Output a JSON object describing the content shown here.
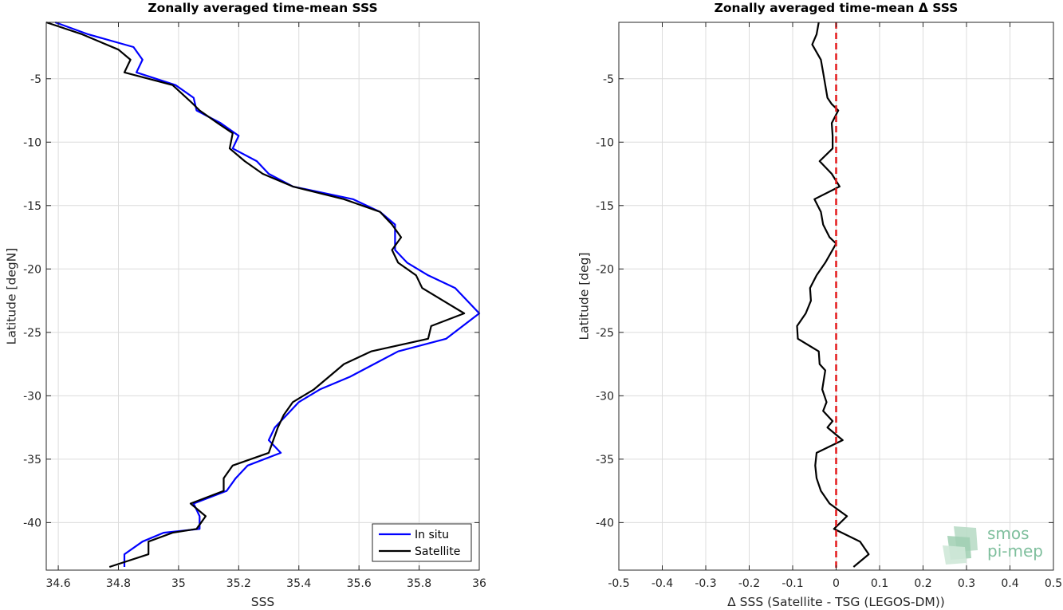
{
  "chart_data": [
    {
      "type": "line",
      "title": "Zonally averaged time-mean SSS",
      "xlabel": "SSS",
      "ylabel": "Latitude [degN]",
      "xlim": [
        34.56,
        36.0
      ],
      "ylim": [
        -43.75,
        -0.55
      ],
      "xticks": [
        34.6,
        34.8,
        35,
        35.2,
        35.4,
        35.6,
        35.8,
        36
      ],
      "xticklabels": [
        "34.6",
        "34.8",
        "35",
        "35.2",
        "35.4",
        "35.6",
        "35.8",
        "36"
      ],
      "yticks": [
        -5,
        -10,
        -15,
        -20,
        -25,
        -30,
        -35,
        -40
      ],
      "yticklabels": [
        "-5",
        "-10",
        "-15",
        "-20",
        "-25",
        "-30",
        "-35",
        "-40"
      ],
      "grid": true,
      "legend_position": "bottom-right",
      "series": [
        {
          "name": "In situ",
          "color": "#0000ff",
          "x": [
            34.59,
            34.7,
            34.85,
            34.88,
            34.86,
            34.99,
            35.05,
            35.06,
            35.14,
            35.2,
            35.18,
            35.26,
            35.3,
            35.38,
            35.58,
            35.67,
            35.72,
            35.72,
            35.72,
            35.76,
            35.83,
            35.92,
            36.0,
            35.89,
            35.73,
            35.65,
            35.57,
            35.47,
            35.4,
            35.36,
            35.32,
            35.3,
            35.34,
            35.23,
            35.19,
            35.16,
            35.05,
            35.07,
            35.07,
            34.95,
            34.88,
            34.82,
            34.82
          ],
          "y": [
            -0.55,
            -1.5,
            -2.5,
            -3.5,
            -4.5,
            -5.5,
            -6.5,
            -7.5,
            -8.5,
            -9.5,
            -10.5,
            -11.5,
            -12.5,
            -13.5,
            -14.5,
            -15.5,
            -16.5,
            -17.5,
            -18.5,
            -19.5,
            -20.5,
            -21.5,
            -23.5,
            -25.5,
            -26.5,
            -27.5,
            -28.5,
            -29.5,
            -30.5,
            -31.5,
            -32.5,
            -33.5,
            -34.5,
            -35.5,
            -36.5,
            -37.5,
            -38.5,
            -39.5,
            -40.5,
            -40.8,
            -41.5,
            -42.5,
            -43.5
          ]
        },
        {
          "name": "Satellite",
          "color": "#000000",
          "x": [
            34.56,
            34.68,
            34.8,
            34.84,
            34.82,
            34.98,
            35.04,
            35.07,
            35.13,
            35.18,
            35.17,
            35.22,
            35.28,
            35.38,
            35.55,
            35.67,
            35.71,
            35.74,
            35.71,
            35.73,
            35.79,
            35.81,
            35.95,
            35.84,
            35.83,
            35.64,
            35.55,
            35.5,
            35.45,
            35.38,
            35.35,
            35.33,
            35.3,
            35.18,
            35.15,
            35.15,
            35.04,
            35.09,
            35.06,
            34.98,
            34.9,
            34.9,
            34.77
          ],
          "y": [
            -0.55,
            -1.5,
            -2.7,
            -3.5,
            -4.5,
            -5.5,
            -6.8,
            -7.5,
            -8.5,
            -9.3,
            -10.5,
            -11.5,
            -12.5,
            -13.5,
            -14.5,
            -15.5,
            -16.5,
            -17.5,
            -18.5,
            -19.5,
            -20.5,
            -21.5,
            -23.5,
            -24.5,
            -25.5,
            -26.5,
            -27.5,
            -28.5,
            -29.5,
            -30.5,
            -31.5,
            -32.5,
            -34.5,
            -35.5,
            -36.5,
            -37.5,
            -38.5,
            -39.5,
            -40.5,
            -40.8,
            -41.5,
            -42.5,
            -43.5
          ]
        }
      ]
    },
    {
      "type": "line",
      "title": "Zonally averaged time-mean Δ SSS",
      "xlabel": "Δ SSS (Satellite - TSG (LEGOS-DM))",
      "ylabel": "Latitude [deg]",
      "xlim": [
        -0.5,
        0.5
      ],
      "ylim": [
        -43.75,
        -0.55
      ],
      "xticks": [
        -0.5,
        -0.4,
        -0.3,
        -0.2,
        -0.1,
        0,
        0.1,
        0.2,
        0.3,
        0.4,
        0.5
      ],
      "xticklabels": [
        "-0.5",
        "-0.4",
        "-0.3",
        "-0.2",
        "-0.1",
        "0",
        "0.1",
        "0.2",
        "0.3",
        "0.4",
        "0.5"
      ],
      "yticks": [
        -5,
        -10,
        -15,
        -20,
        -25,
        -30,
        -35,
        -40
      ],
      "yticklabels": [
        "-5",
        "-10",
        "-15",
        "-20",
        "-25",
        "-30",
        "-35",
        "-40"
      ],
      "grid": true,
      "series": [
        {
          "color": "#000000",
          "x": [
            -0.04,
            -0.045,
            -0.055,
            -0.035,
            -0.03,
            -0.025,
            -0.02,
            -0.01,
            0.005,
            -0.01,
            -0.008,
            -0.008,
            -0.038,
            -0.01,
            0.008,
            -0.05,
            -0.035,
            -0.03,
            -0.015,
            0.0,
            -0.025,
            -0.045,
            -0.06,
            -0.058,
            -0.07,
            -0.09,
            -0.088,
            -0.04,
            -0.038,
            -0.025,
            -0.032,
            -0.022,
            -0.03,
            -0.008,
            -0.02,
            0.015,
            -0.045,
            -0.048,
            -0.045,
            -0.035,
            -0.015,
            0.025,
            -0.005,
            0.055,
            0.075,
            0.04
          ],
          "y": [
            -0.55,
            -1.5,
            -2.3,
            -3.5,
            -4.5,
            -5.5,
            -6.5,
            -7.0,
            -7.5,
            -8.5,
            -9.5,
            -10.5,
            -11.5,
            -12.5,
            -13.5,
            -14.5,
            -15.5,
            -16.5,
            -17.5,
            -18.0,
            -19.5,
            -20.5,
            -21.5,
            -22.5,
            -23.5,
            -24.5,
            -25.5,
            -26.5,
            -27.5,
            -28.0,
            -29.5,
            -30.5,
            -31.2,
            -32.0,
            -32.5,
            -33.5,
            -34.5,
            -35.5,
            -36.5,
            -37.5,
            -38.5,
            -39.5,
            -40.5,
            -41.5,
            -42.5,
            -43.5
          ]
        }
      ],
      "reference_line": {
        "x": 0,
        "color": "#e41a1c",
        "style": "dashed"
      }
    }
  ],
  "logo": {
    "line1": "smos",
    "line2": "pi-mep"
  }
}
